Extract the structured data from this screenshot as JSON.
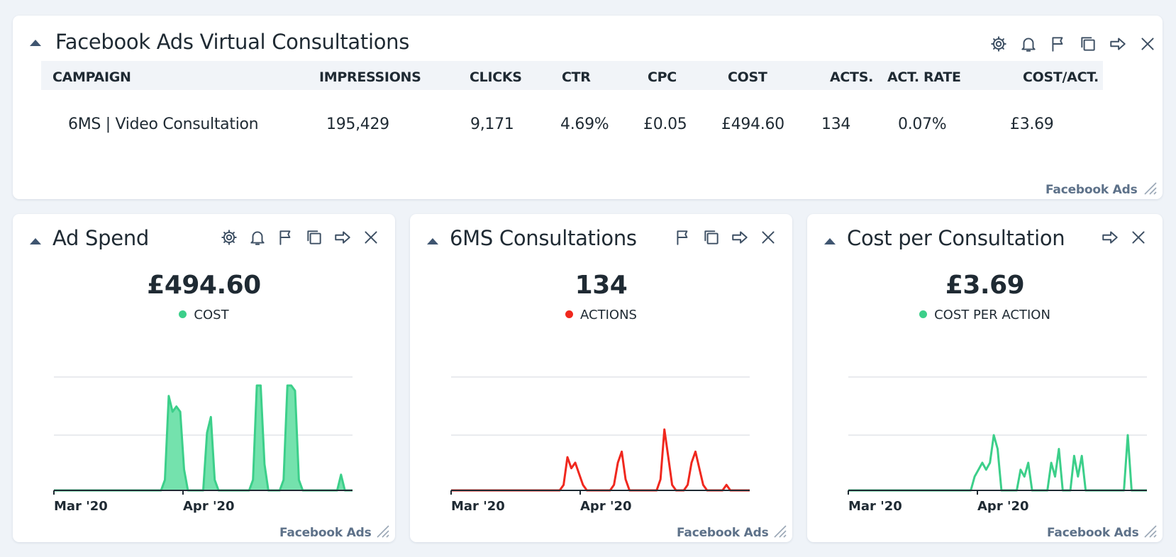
{
  "top_card": {
    "title": "Facebook Ads Virtual Consultations",
    "source": "Facebook Ads",
    "columns": [
      "CAMPAIGN",
      "IMPRESSIONS",
      "CLICKS",
      "CTR",
      "CPC",
      "COST",
      "ACTS.",
      "ACT. RATE",
      "COST/ACT."
    ],
    "rows": [
      [
        "6MS | Video Consultation",
        "195,429",
        "9,171",
        "4.69%",
        "£0.05",
        "£494.60",
        "134",
        "0.07%",
        "£3.69"
      ]
    ],
    "icons": [
      "gear-icon",
      "bell-icon",
      "flag-icon",
      "copy-icon",
      "share-arrow-icon",
      "close-icon"
    ]
  },
  "cards": [
    {
      "title": "Ad Spend",
      "value": "£494.60",
      "legend": "COST",
      "color": "#3ccf8a",
      "source": "Facebook Ads",
      "icons": [
        "gear-icon",
        "bell-icon",
        "flag-icon",
        "copy-icon",
        "share-arrow-icon",
        "close-icon"
      ]
    },
    {
      "title": "6MS Consultations",
      "value": "134",
      "legend": "ACTIONS",
      "color": "#f0281e",
      "source": "Facebook Ads",
      "icons": [
        "flag-icon",
        "copy-icon",
        "share-arrow-icon",
        "close-icon"
      ]
    },
    {
      "title": "Cost per Consultation",
      "value": "£3.69",
      "legend": "COST PER ACTION",
      "color": "#3ccf8a",
      "source": "Facebook Ads",
      "icons": [
        "share-arrow-icon",
        "close-icon"
      ]
    }
  ],
  "chart_data": [
    {
      "type": "area",
      "series": [
        {
          "name": "COST",
          "values": [
            0,
            0,
            0,
            0,
            0,
            0,
            0,
            0,
            0,
            0,
            0,
            0,
            0,
            0,
            0,
            0,
            0,
            0,
            0,
            0,
            0,
            0,
            0,
            0,
            0,
            0,
            0,
            0,
            0,
            2,
            18,
            15,
            16,
            15,
            4,
            0,
            0,
            0,
            0,
            0,
            11,
            14,
            2,
            0,
            0,
            0,
            0,
            0,
            0,
            0,
            0,
            0,
            2,
            20,
            20,
            5,
            0,
            0,
            0,
            0,
            2,
            20,
            20,
            19,
            2,
            0,
            0,
            0,
            0,
            0,
            0,
            0,
            0,
            0,
            0,
            3,
            0,
            0,
            0
          ]
        }
      ],
      "x_tick_labels": [
        "Mar '20",
        "Apr '20"
      ],
      "grid": true
    },
    {
      "type": "line",
      "series": [
        {
          "name": "ACTIONS",
          "values": [
            0,
            0,
            0,
            0,
            0,
            0,
            0,
            0,
            0,
            0,
            0,
            0,
            0,
            0,
            0,
            0,
            0,
            0,
            0,
            0,
            0,
            0,
            0,
            0,
            0,
            0,
            0,
            0,
            0,
            1,
            6,
            4,
            5,
            3,
            1,
            0,
            0,
            0,
            0,
            0,
            0,
            0,
            1,
            5,
            7,
            2,
            0,
            0,
            0,
            0,
            0,
            0,
            0,
            0,
            2,
            11,
            6,
            1,
            0,
            0,
            0,
            1,
            5,
            7,
            4,
            1,
            0,
            0,
            0,
            0,
            0,
            1,
            0,
            0,
            0,
            0,
            0,
            0
          ]
        }
      ],
      "x_tick_labels": [
        "Mar '20",
        "Apr '20"
      ],
      "grid": true
    },
    {
      "type": "line",
      "series": [
        {
          "name": "COST PER ACTION",
          "values": [
            0,
            0,
            0,
            0,
            0,
            0,
            0,
            0,
            0,
            0,
            0,
            0,
            0,
            0,
            0,
            0,
            0,
            0,
            0,
            0,
            0,
            0,
            0,
            0,
            0,
            0,
            0,
            0,
            0,
            0,
            0,
            0,
            0,
            2,
            3,
            4,
            3,
            4,
            8,
            6,
            0,
            0,
            0,
            0,
            0,
            3,
            2,
            4,
            0,
            0,
            0,
            0,
            0,
            4,
            2,
            6,
            0,
            0,
            0,
            5,
            2,
            5,
            0,
            0,
            0,
            0,
            0,
            0,
            0,
            0,
            0,
            0,
            0,
            8,
            0,
            0,
            0,
            0,
            0
          ]
        }
      ],
      "x_tick_labels": [
        "Mar '20",
        "Apr '20"
      ],
      "grid": true
    }
  ]
}
